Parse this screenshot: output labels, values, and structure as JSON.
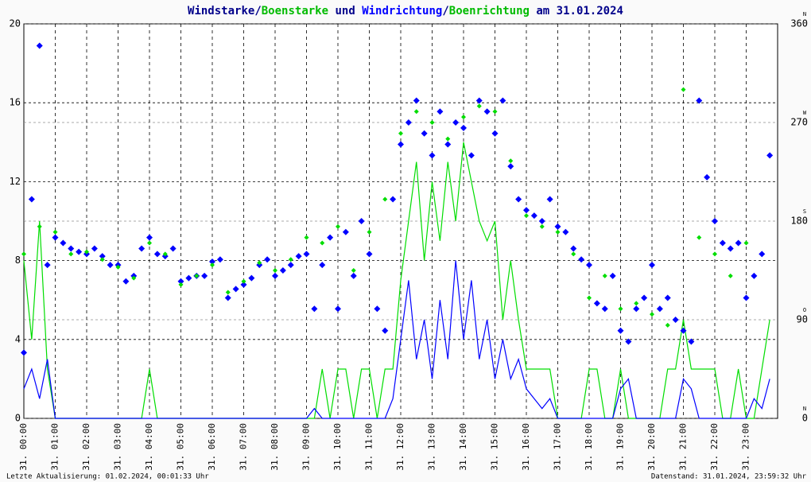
{
  "chart_data": {
    "type": "line",
    "title_parts": [
      {
        "text": "Windstarke",
        "color": "#00008b"
      },
      {
        "text": "/",
        "color": "#00008b"
      },
      {
        "text": "Boenstarke",
        "color": "#00bb00"
      },
      {
        "text": " und ",
        "color": "#00008b"
      },
      {
        "text": "Windrichtung",
        "color": "#0000ff"
      },
      {
        "text": "/",
        "color": "#00008b"
      },
      {
        "text": "Boenrichtung",
        "color": "#00bb00"
      },
      {
        "text": " am 31.01.2024",
        "color": "#00008b"
      }
    ],
    "footer_left": "Letzte Aktualisierung: 01.02.2024, 00:01:33 Uhr",
    "footer_right": "Datenstand: 31.01.2024, 23:59:32 Uhr",
    "x": [
      0,
      0.25,
      0.5,
      0.75,
      1,
      1.25,
      1.5,
      1.75,
      2,
      2.25,
      2.5,
      2.75,
      3,
      3.25,
      3.5,
      3.75,
      4,
      4.25,
      4.5,
      4.75,
      5,
      5.25,
      5.5,
      5.75,
      6,
      6.25,
      6.5,
      6.75,
      7,
      7.25,
      7.5,
      7.75,
      8,
      8.25,
      8.5,
      8.75,
      9,
      9.25,
      9.5,
      9.75,
      10,
      10.25,
      10.5,
      10.75,
      11,
      11.25,
      11.5,
      11.75,
      12,
      12.25,
      12.5,
      12.75,
      13,
      13.25,
      13.5,
      13.75,
      14,
      14.25,
      14.5,
      14.75,
      15,
      15.25,
      15.5,
      15.75,
      16,
      16.25,
      16.5,
      16.75,
      17,
      17.25,
      17.5,
      17.75,
      18,
      18.25,
      18.5,
      18.75,
      19,
      19.25,
      19.5,
      19.75,
      20,
      20.25,
      20.5,
      20.75,
      21,
      21.25,
      21.5,
      21.75,
      22,
      22.25,
      22.5,
      22.75,
      23,
      23.25,
      23.5,
      23.75
    ],
    "xlim": [
      0,
      24
    ],
    "xticks": [
      {
        "value": 0,
        "label": "31. 00:00"
      },
      {
        "value": 1,
        "label": "31. 01:00"
      },
      {
        "value": 2,
        "label": "31. 02:00"
      },
      {
        "value": 3,
        "label": "31. 03:00"
      },
      {
        "value": 4,
        "label": "31. 04:00"
      },
      {
        "value": 5,
        "label": "31. 05:00"
      },
      {
        "value": 6,
        "label": "31. 06:00"
      },
      {
        "value": 7,
        "label": "31. 07:00"
      },
      {
        "value": 8,
        "label": "31. 08:00"
      },
      {
        "value": 9,
        "label": "31. 09:00"
      },
      {
        "value": 10,
        "label": "31. 10:00"
      },
      {
        "value": 11,
        "label": "31. 11:00"
      },
      {
        "value": 12,
        "label": "31. 12:00"
      },
      {
        "value": 13,
        "label": "31. 13:00"
      },
      {
        "value": 14,
        "label": "31. 14:00"
      },
      {
        "value": 15,
        "label": "31. 15:00"
      },
      {
        "value": 16,
        "label": "31. 16:00"
      },
      {
        "value": 17,
        "label": "31. 17:00"
      },
      {
        "value": 18,
        "label": "31. 18:00"
      },
      {
        "value": 19,
        "label": "31. 19:00"
      },
      {
        "value": 20,
        "label": "31. 20:00"
      },
      {
        "value": 21,
        "label": "31. 21:00"
      },
      {
        "value": 22,
        "label": "31. 22:00"
      },
      {
        "value": 23,
        "label": "31. 23:00"
      }
    ],
    "ylim": [
      0,
      20
    ],
    "yticks": [
      0,
      4,
      8,
      12,
      16,
      20
    ],
    "y2lim": [
      0,
      360
    ],
    "y2ticks": [
      {
        "value": 0,
        "label": "0",
        "direction": "N"
      },
      {
        "value": 90,
        "label": "90",
        "direction": "O"
      },
      {
        "value": 180,
        "label": "180",
        "direction": "S"
      },
      {
        "value": 270,
        "label": "270",
        "direction": "W"
      },
      {
        "value": 360,
        "label": "360",
        "direction": "N"
      }
    ],
    "grid": true,
    "series": [
      {
        "name": "Boenstarke",
        "color": "#00dd00",
        "kind": "line",
        "values": [
          8,
          4,
          10,
          2.5,
          0,
          0,
          0,
          0,
          0,
          0,
          0,
          0,
          0,
          0,
          0,
          0,
          2.5,
          0,
          0,
          0,
          0,
          0,
          0,
          0,
          0,
          0,
          0,
          0,
          0,
          0,
          0,
          0,
          0,
          0,
          0,
          0,
          0,
          0,
          2.5,
          0,
          2.5,
          2.5,
          0,
          2.5,
          2.5,
          0,
          2.5,
          2.5,
          7,
          10,
          13,
          8,
          12,
          9,
          13,
          10,
          14,
          12,
          10,
          9,
          10,
          5,
          8,
          5,
          2.5,
          2.5,
          2.5,
          2.5,
          0,
          0,
          0,
          0,
          2.5,
          2.5,
          0,
          0,
          2.5,
          0,
          0,
          0,
          0,
          0,
          2.5,
          2.5,
          5,
          2.5,
          2.5,
          2.5,
          2.5,
          0,
          0,
          2.5,
          0,
          0,
          2.5,
          5
        ]
      },
      {
        "name": "Windstarke",
        "color": "#0000ff",
        "kind": "line",
        "values": [
          1.5,
          2.5,
          1,
          3,
          0,
          0,
          0,
          0,
          0,
          0,
          0,
          0,
          0,
          0,
          0,
          0,
          0,
          0,
          0,
          0,
          0,
          0,
          0,
          0,
          0,
          0,
          0,
          0,
          0,
          0,
          0,
          0,
          0,
          0,
          0,
          0,
          0,
          0.5,
          0,
          0,
          0,
          0,
          0,
          0,
          0,
          0,
          0,
          1,
          4,
          7,
          3,
          5,
          2,
          6,
          3,
          8,
          4,
          7,
          3,
          5,
          2,
          4,
          2,
          3,
          1.5,
          1,
          0.5,
          1,
          0,
          0,
          0,
          0,
          0,
          0,
          0,
          0,
          1.5,
          2,
          0,
          0,
          0,
          0,
          0,
          0,
          2,
          1.5,
          0,
          0,
          0,
          0,
          0,
          0,
          0,
          1,
          0.5,
          2
        ]
      },
      {
        "name": "Windrichtung",
        "color": "#0000ff",
        "kind": "scatter",
        "axis": "y2",
        "values": [
          60,
          200,
          340,
          140,
          165,
          160,
          155,
          152,
          150,
          155,
          148,
          140,
          140,
          125,
          130,
          155,
          165,
          150,
          148,
          155,
          125,
          128,
          130,
          130,
          143,
          145,
          110,
          118,
          122,
          128,
          140,
          145,
          130,
          135,
          140,
          148,
          150,
          100,
          140,
          165,
          100,
          170,
          130,
          180,
          150,
          100,
          80,
          200,
          250,
          270,
          290,
          260,
          240,
          280,
          250,
          270,
          265,
          240,
          290,
          280,
          260,
          290,
          230,
          200,
          190,
          185,
          180,
          200,
          175,
          170,
          155,
          145,
          140,
          105,
          100,
          130,
          80,
          70,
          100,
          110,
          140,
          100,
          110,
          90,
          80,
          70,
          290,
          220,
          180,
          160,
          155,
          160,
          110,
          130,
          150,
          240
        ]
      },
      {
        "name": "Boenrichtung",
        "color": "#00dd00",
        "kind": "scatter",
        "axis": "y2",
        "values": [
          150,
          null,
          175,
          null,
          170,
          null,
          150,
          null,
          152,
          null,
          145,
          null,
          138,
          null,
          128,
          null,
          160,
          null,
          150,
          null,
          122,
          null,
          130,
          null,
          140,
          null,
          115,
          null,
          125,
          null,
          142,
          null,
          135,
          null,
          145,
          null,
          165,
          null,
          160,
          null,
          175,
          null,
          135,
          null,
          170,
          null,
          200,
          null,
          260,
          null,
          280,
          null,
          270,
          null,
          255,
          null,
          275,
          null,
          285,
          null,
          280,
          null,
          235,
          null,
          185,
          null,
          175,
          null,
          170,
          null,
          150,
          null,
          110,
          null,
          130,
          null,
          100,
          null,
          105,
          null,
          95,
          null,
          85,
          null,
          300,
          null,
          165,
          null,
          150,
          null,
          130,
          null,
          160,
          null
        ]
      }
    ]
  }
}
